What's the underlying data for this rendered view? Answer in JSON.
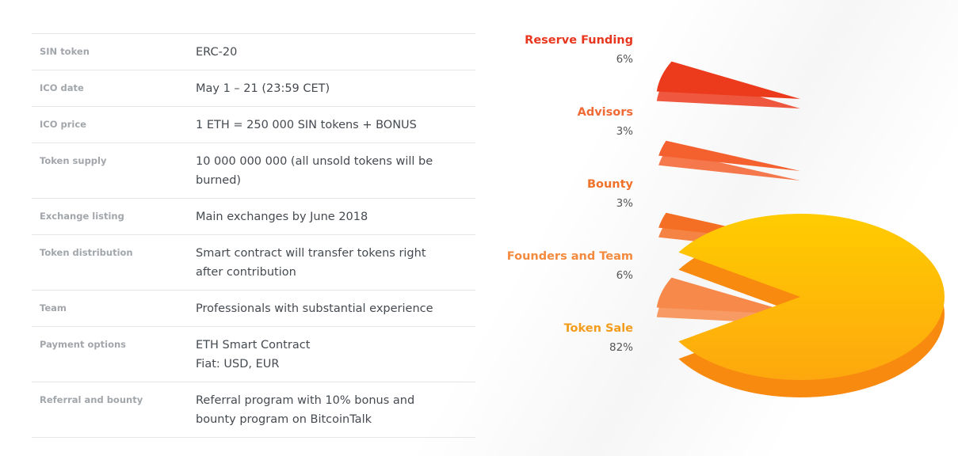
{
  "table": {
    "rows": [
      {
        "label": "SIN token",
        "lines": [
          "ERC-20"
        ]
      },
      {
        "label": "ICO date",
        "lines": [
          "May 1 – 21 (23:59 CET)"
        ]
      },
      {
        "label": "ICO price",
        "lines": [
          "1 ETH = 250 000 SIN tokens + BONUS"
        ]
      },
      {
        "label": "Token supply",
        "lines": [
          "10 000 000 000 (all unsold tokens will be burned)"
        ]
      },
      {
        "label": "Exchange listing",
        "lines": [
          "Main exchanges by June 2018"
        ]
      },
      {
        "label": "Token distribution",
        "lines": [
          "Smart contract will transfer tokens right after contribution"
        ]
      },
      {
        "label": "Team",
        "lines": [
          "Professionals with substantial experience"
        ]
      },
      {
        "label": "Payment options",
        "lines": [
          "ETH Smart Contract",
          "Fiat: USD, EUR"
        ]
      },
      {
        "label": "Referral and bounty",
        "lines": [
          "Referral program with 10% bonus and bounty program on BitcoinTalk"
        ]
      }
    ]
  },
  "chart_data": {
    "type": "pie",
    "categories": [
      "Reserve Funding",
      "Advisors",
      "Bounty",
      "Founders and Team",
      "Token Sale"
    ],
    "values": [
      6,
      3,
      3,
      6,
      82
    ],
    "value_labels": [
      "6%",
      "3%",
      "3%",
      "6%",
      "82%"
    ],
    "colors": [
      "#ec3a1c",
      "#f4602e",
      "#f46f24",
      "#f7894a",
      "#fdb606"
    ],
    "label_colors": [
      "#e8361e",
      "#f06a36",
      "#f0722a",
      "#f38a3e",
      "#f39c1c"
    ]
  }
}
